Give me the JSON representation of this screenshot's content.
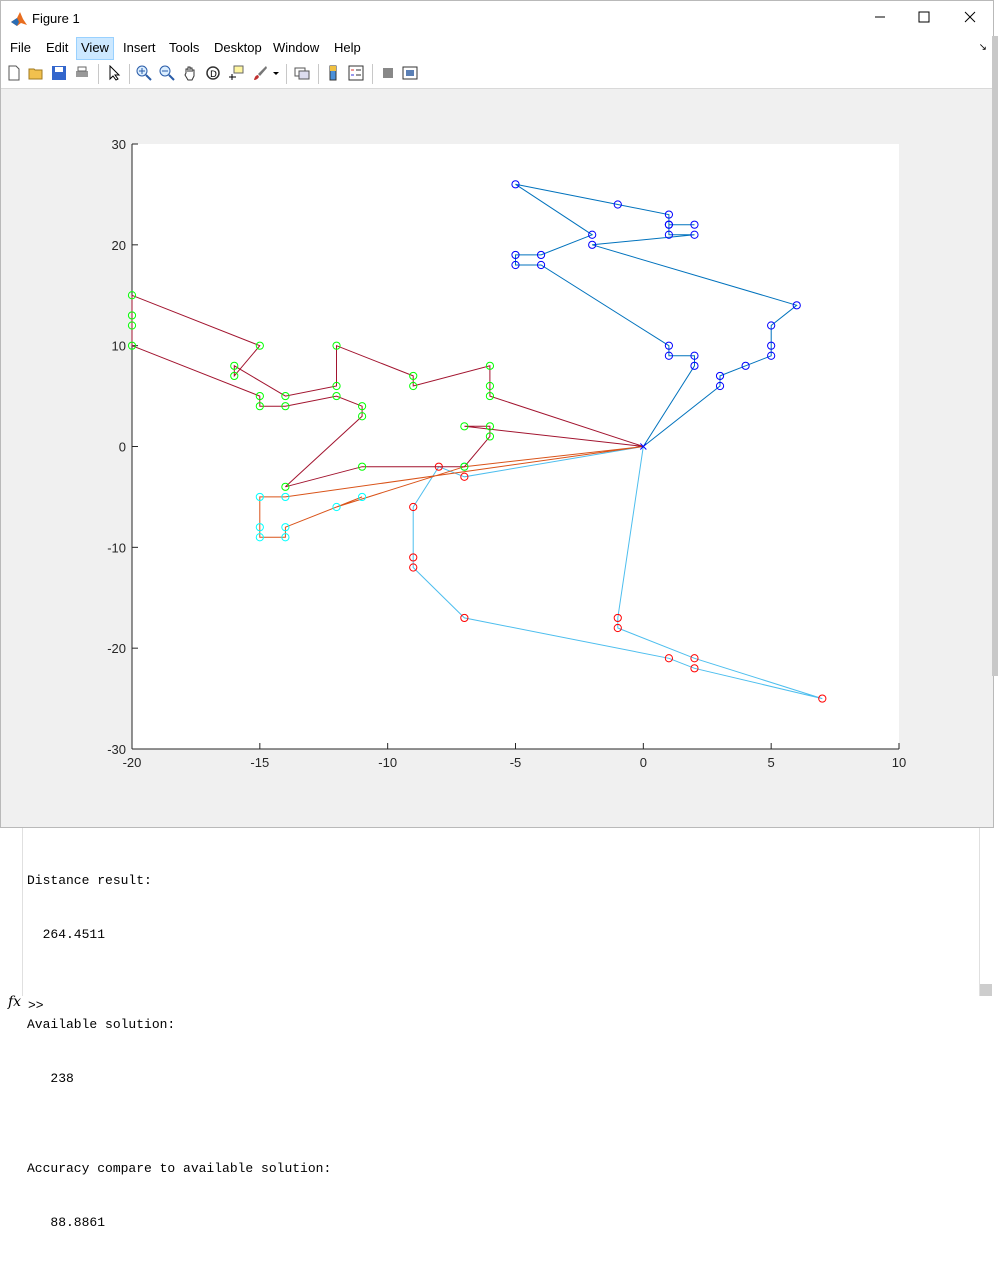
{
  "window": {
    "title": "Figure 1",
    "minimize_icon": "minimize-icon",
    "maximize_icon": "maximize-icon",
    "close_icon": "close-icon"
  },
  "menu": [
    "File",
    "Edit",
    "View",
    "Insert",
    "Tools",
    "Desktop",
    "Window",
    "Help"
  ],
  "toolbar_icons": [
    "new-figure-icon",
    "open-file-icon",
    "save-icon",
    "print-icon",
    "edit-plot-arrow-icon",
    "zoom-in-icon",
    "zoom-out-icon",
    "pan-hand-icon",
    "rotate-3d-icon",
    "data-cursor-icon",
    "brush-icon",
    "brush-dropdown-icon",
    "link-plot-icon",
    "insert-colorbar-icon",
    "insert-legend-icon",
    "hide-plot-tools-icon",
    "show-plot-tools-icon"
  ],
  "chart_data": {
    "type": "line",
    "xlim": [
      -20,
      10
    ],
    "ylim": [
      -30,
      30
    ],
    "xticks": [
      -20,
      -15,
      -10,
      -5,
      0,
      5,
      10
    ],
    "yticks": [
      -30,
      -20,
      -10,
      0,
      10,
      20,
      30
    ],
    "depot": [
      0,
      0
    ],
    "series": [
      {
        "color": "#0072BD",
        "marker_color": "#0000ff",
        "points": [
          [
            0,
            0
          ],
          [
            2,
            8
          ],
          [
            2,
            9
          ],
          [
            1,
            9
          ],
          [
            1,
            10
          ],
          [
            -4,
            18
          ],
          [
            -5,
            18
          ],
          [
            -5,
            19
          ],
          [
            -4,
            19
          ],
          [
            -2,
            21
          ],
          [
            -5,
            26
          ],
          [
            -1,
            24
          ],
          [
            1,
            23
          ],
          [
            1,
            22
          ],
          [
            2,
            22
          ],
          [
            1,
            22
          ],
          [
            1,
            21
          ],
          [
            2,
            21
          ],
          [
            -2,
            20
          ],
          [
            6,
            14
          ],
          [
            5,
            12
          ],
          [
            5,
            10
          ],
          [
            5,
            9
          ],
          [
            4,
            8
          ],
          [
            3,
            7
          ],
          [
            3,
            6
          ],
          [
            0,
            0
          ]
        ]
      },
      {
        "color": "#4DBEEE",
        "marker_color": "#ff0000",
        "points": [
          [
            0,
            0
          ],
          [
            -1,
            -17
          ],
          [
            -1,
            -18
          ],
          [
            2,
            -21
          ],
          [
            7,
            -25
          ],
          [
            2,
            -22
          ],
          [
            1,
            -21
          ],
          [
            -7,
            -17
          ],
          [
            -9,
            -12
          ],
          [
            -9,
            -11
          ],
          [
            -9,
            -6
          ],
          [
            -8,
            -2
          ],
          [
            -7,
            -3
          ],
          [
            0,
            0
          ]
        ]
      },
      {
        "color": "#D95319",
        "marker_color": "#00ffff",
        "points": [
          [
            0,
            0
          ],
          [
            -14,
            -5
          ],
          [
            -15,
            -5
          ],
          [
            -15,
            -8
          ],
          [
            -15,
            -9
          ],
          [
            -14,
            -9
          ],
          [
            -14,
            -8
          ],
          [
            -11,
            -5
          ],
          [
            -12,
            -6
          ],
          [
            -7,
            -2
          ],
          [
            0,
            0
          ]
        ]
      },
      {
        "color": "#A2142F",
        "marker_color": "#00ff00",
        "points": [
          [
            0,
            0
          ],
          [
            -7,
            2
          ],
          [
            -6,
            2
          ],
          [
            -6,
            1
          ],
          [
            -7,
            -2
          ],
          [
            -11,
            -2
          ],
          [
            -14,
            -4
          ],
          [
            -11,
            3
          ],
          [
            -11,
            4
          ],
          [
            -12,
            5
          ],
          [
            -14,
            4
          ],
          [
            -15,
            4
          ],
          [
            -15,
            5
          ],
          [
            -20,
            10
          ],
          [
            -20,
            12
          ],
          [
            -20,
            13
          ],
          [
            -20,
            15
          ],
          [
            -15,
            10
          ],
          [
            -16,
            7
          ],
          [
            -16,
            8
          ],
          [
            -14,
            5
          ],
          [
            -12,
            6
          ],
          [
            -12,
            10
          ],
          [
            -9,
            7
          ],
          [
            -9,
            6
          ],
          [
            -6,
            8
          ],
          [
            -6,
            6
          ],
          [
            -6,
            5
          ],
          [
            0,
            0
          ]
        ]
      }
    ]
  },
  "console": {
    "lines": [
      "Distance result:",
      "  264.4511",
      "",
      "Available solution:",
      "   238",
      "",
      "Accuracy compare to available solution:",
      "   88.8861"
    ],
    "fx": "fx",
    "prompt": ">>"
  }
}
